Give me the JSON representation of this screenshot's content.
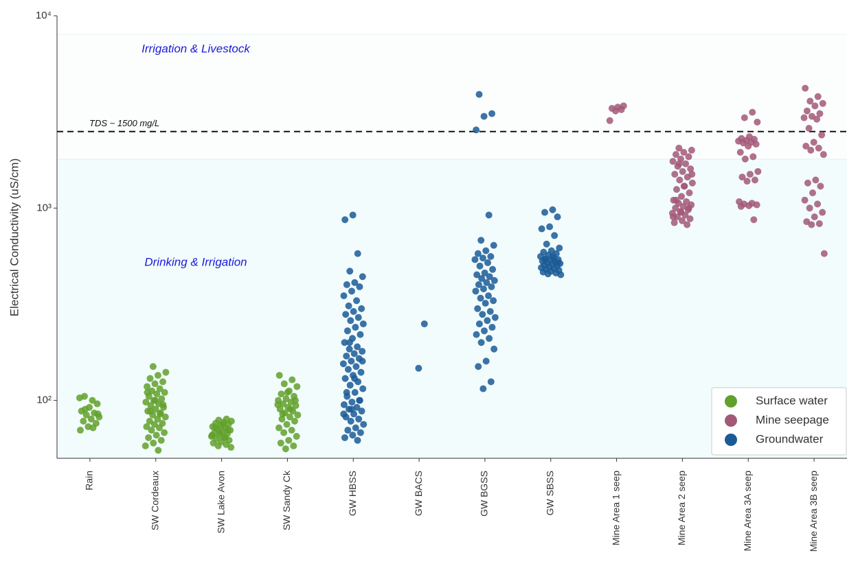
{
  "chart_data": {
    "type": "strip",
    "y_label": "Electrical Conductivity (uS/cm)",
    "log_y": true,
    "ylim": [
      50,
      10000
    ],
    "yticks": [
      {
        "value": 100,
        "label": "10²"
      },
      {
        "value": 1000,
        "label": "10³"
      },
      {
        "value": 10000,
        "label": "10⁴"
      }
    ],
    "zones": [
      {
        "label": "Drinking & Irrigation",
        "upper": 1800,
        "color": "#f2fcfc"
      },
      {
        "label": "Irrigation & Livestock",
        "upper": 8000,
        "color": "#fcfefe"
      }
    ],
    "reference_line": {
      "label": "TDS ~ 1500 mg/L",
      "value": 2500
    },
    "legend_position": "lower right",
    "categories": [
      "Rain",
      "SW Cordeaux",
      "SW Lake Avon",
      "SW Sandy Ck",
      "GW HBSS",
      "GW BACS",
      "GW BGSS",
      "GW SBSS",
      "Mine Area 1 seep",
      "Mine Area 2 seep",
      "Mine Area 3A seep",
      "Mine Area 3B seep"
    ],
    "series": [
      {
        "name": "Surface water",
        "color": "#62a02c",
        "values": [
          [
            103,
            100,
            105,
            96,
            92,
            88,
            86,
            84,
            82,
            80,
            78,
            76,
            73,
            70,
            72,
            90,
            85
          ],
          [
            150,
            140,
            135,
            130,
            125,
            122,
            118,
            115,
            112,
            110,
            108,
            105,
            102,
            100,
            98,
            96,
            94,
            92,
            90,
            88,
            86,
            84,
            82,
            80,
            78,
            76,
            75,
            73,
            72,
            70,
            68,
            66,
            64,
            62,
            60,
            58,
            55,
            88,
            95,
            100,
            110,
            85
          ],
          [
            80,
            79,
            78,
            77,
            76,
            75,
            74,
            73,
            72,
            71,
            70,
            69,
            68,
            67,
            66,
            65,
            64,
            63,
            62,
            61,
            60,
            59,
            58,
            57,
            75,
            72,
            70,
            68,
            66,
            64
          ],
          [
            135,
            128,
            122,
            118,
            112,
            108,
            105,
            102,
            100,
            98,
            96,
            94,
            92,
            90,
            88,
            86,
            84,
            82,
            80,
            78,
            75,
            72,
            70,
            68,
            65,
            62,
            60,
            58,
            56,
            95,
            90,
            85,
            100,
            110
          ],
          [],
          [],
          [],
          [],
          [],
          [],
          [],
          []
        ]
      },
      {
        "name": "Mine seepage",
        "color": "#a25877",
        "values": [
          [],
          [],
          [],
          [],
          [],
          [],
          [],
          [],
          [
            3400,
            3350,
            3300,
            3250,
            3200,
            2850
          ],
          [
            2050,
            2000,
            1950,
            1900,
            1850,
            1800,
            1750,
            1700,
            1650,
            1600,
            1550,
            1500,
            1450,
            1400,
            1350,
            1300,
            1250,
            1200,
            1150,
            1100,
            1080,
            1060,
            1040,
            1020,
            1000,
            980,
            960,
            940,
            920,
            900,
            880,
            860,
            840,
            820,
            1700,
            1500,
            1300,
            1100,
            1000,
            950,
            900
          ],
          [
            3150,
            2950,
            2800,
            2350,
            2300,
            2280,
            2250,
            2230,
            2200,
            2180,
            2150,
            2100,
            1950,
            1850,
            1800,
            1550,
            1500,
            1450,
            1400,
            1380,
            1080,
            1060,
            1050,
            1040,
            1030,
            1020,
            870
          ],
          [
            4200,
            3800,
            3600,
            3500,
            3400,
            3200,
            3100,
            3000,
            2950,
            2900,
            2600,
            2400,
            2200,
            2100,
            2050,
            2000,
            1900,
            1400,
            1350,
            1300,
            1200,
            1100,
            1050,
            1000,
            950,
            900,
            850,
            830,
            820,
            580
          ]
        ]
      },
      {
        "name": "Groundwater",
        "color": "#1b5a96",
        "values": [
          [],
          [],
          [],
          [],
          [
            920,
            870,
            580,
            470,
            440,
            410,
            400,
            390,
            370,
            350,
            330,
            310,
            300,
            290,
            280,
            270,
            260,
            250,
            240,
            230,
            220,
            210,
            200,
            190,
            185,
            180,
            175,
            170,
            165,
            160,
            155,
            150,
            145,
            140,
            135,
            130,
            125,
            120,
            115,
            110,
            105,
            100,
            98,
            95,
            92,
            90,
            88,
            85,
            82,
            80,
            78,
            75,
            72,
            70,
            68,
            66,
            64,
            62,
            200,
            160,
            130,
            110,
            100,
            90,
            85
          ],
          [
            250,
            147
          ],
          [
            3900,
            3100,
            3000,
            2550,
            920,
            680,
            640,
            600,
            580,
            560,
            550,
            540,
            520,
            500,
            480,
            460,
            450,
            440,
            430,
            420,
            410,
            400,
            390,
            380,
            370,
            350,
            340,
            330,
            320,
            300,
            290,
            280,
            270,
            260,
            250,
            240,
            230,
            220,
            210,
            200,
            185,
            160,
            150,
            125,
            115
          ],
          [
            980,
            950,
            900,
            800,
            780,
            720,
            650,
            620,
            600,
            590,
            580,
            570,
            560,
            550,
            545,
            540,
            535,
            530,
            525,
            520,
            515,
            510,
            505,
            500,
            495,
            490,
            485,
            480,
            475,
            470,
            465,
            460,
            455,
            450,
            560,
            540,
            520
          ],
          [],
          [],
          [],
          []
        ]
      }
    ]
  }
}
